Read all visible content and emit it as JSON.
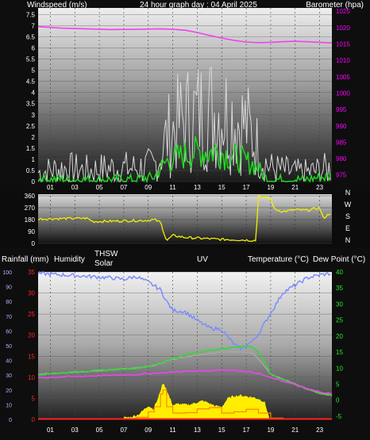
{
  "header": {
    "left": "Windspeed (m/s)",
    "center": "24 hour graph day : 04 April 2025",
    "right": "Barometer (hpa)"
  },
  "labels": {
    "rain": "Rainfall (mm)",
    "humidity": "Humidity",
    "thsw": "THSW",
    "solar": "Solar",
    "uv": "UV",
    "temp": "Temperature (°C)",
    "dew": "Dew Point (°C)"
  },
  "colors": {
    "wind_gust": "#d8d8d8",
    "wind_avg": "#22dd22",
    "barometer": "#ee44ee",
    "direction": "#f0f000",
    "humidity": "#7b8cff",
    "thsw": "#36d836",
    "temperature": "#a8a8a8",
    "dew_point": "#ee44ee",
    "solar": "#ffee00",
    "uv": "#ff8800",
    "rain": "#ff2222",
    "axis_left": "#ffffff",
    "axis_right": "#ff00ff",
    "axis_left_bottom": "#ff2222",
    "axis_right_bottom": "#22ee22"
  },
  "chart_data": [
    {
      "type": "line",
      "name": "wind-barometer",
      "xlim": [
        0,
        24
      ],
      "x_ticks": [
        "01",
        "03",
        "05",
        "07",
        "09",
        "11",
        "13",
        "15",
        "17",
        "19",
        "21",
        "23"
      ],
      "y_left_ticks": [
        "0",
        "0.5",
        "1",
        "1.5",
        "2",
        "2.5",
        "3",
        "3.5",
        "4",
        "4.5",
        "5",
        "5.5",
        "6",
        "6.5",
        "7",
        "7.5"
      ],
      "y_left_range": [
        0,
        7.8
      ],
      "y_right_ticks": [
        "975",
        "980",
        "985",
        "990",
        "995",
        "1000",
        "1005",
        "1010",
        "1015",
        "1020",
        "1025"
      ],
      "y_right_range": [
        973,
        1026
      ],
      "series": [
        {
          "key": "wind_gust",
          "x": [
            0,
            2,
            4,
            6,
            8,
            9.5,
            10,
            10.5,
            11,
            11.5,
            12,
            12.5,
            13,
            13.5,
            14,
            14.5,
            15,
            15.5,
            16,
            16.5,
            17,
            17.5,
            18,
            18.5,
            19,
            20,
            21,
            22,
            23,
            24
          ],
          "y": [
            0.4,
            0.6,
            0.5,
            0.6,
            0.6,
            0.7,
            1.2,
            2.0,
            2.3,
            2.6,
            2.8,
            2.9,
            3.0,
            3.1,
            3.2,
            3.1,
            3.2,
            3.0,
            2.9,
            2.7,
            2.5,
            2.0,
            1.5,
            0.9,
            0.6,
            0.5,
            0.4,
            0.4,
            0.5,
            0.6
          ]
        },
        {
          "key": "wind_avg",
          "x": [
            0,
            2,
            4,
            6,
            8,
            9.5,
            10,
            10.5,
            11,
            11.5,
            12,
            12.5,
            13,
            13.5,
            14,
            14.5,
            15,
            15.5,
            16,
            16.5,
            17,
            17.5,
            18,
            18.5,
            19,
            20,
            21,
            22,
            23,
            24
          ],
          "y": [
            0.1,
            0.1,
            0.1,
            0.1,
            0.1,
            0.2,
            0.6,
            0.9,
            1.0,
            1.1,
            1.2,
            1.3,
            1.3,
            1.4,
            1.3,
            1.4,
            1.3,
            1.2,
            1.1,
            1.0,
            0.9,
            0.8,
            0.6,
            0.2,
            0.1,
            0.1,
            0.1,
            0.1,
            0.2,
            0.2
          ]
        },
        {
          "key": "barometer",
          "x": [
            0,
            2,
            4,
            6,
            8,
            10,
            11,
            12,
            13,
            14,
            15,
            16,
            17,
            18,
            19,
            20,
            21,
            22,
            23,
            24
          ],
          "y": [
            1020.3,
            1019.8,
            1019.6,
            1019.4,
            1019.5,
            1019.6,
            1019.5,
            1019.2,
            1018.5,
            1017.6,
            1016.8,
            1016.1,
            1015.6,
            1015.4,
            1015.5,
            1015.7,
            1015.8,
            1015.7,
            1015.5,
            1015.3
          ]
        }
      ]
    },
    {
      "type": "line",
      "name": "wind-direction",
      "xlim": [
        0,
        24
      ],
      "y_left_ticks": [
        "0",
        "90",
        "180",
        "270",
        "360"
      ],
      "y_left_range": [
        0,
        360
      ],
      "y_right_ticks": [
        "N",
        "W",
        "S",
        "E",
        "N"
      ],
      "series": [
        {
          "key": "direction",
          "x": [
            0,
            4,
            4.5,
            9,
            9.5,
            10,
            10.5,
            11,
            12,
            13,
            14,
            15,
            16,
            17,
            17.8,
            18,
            18.5,
            19,
            19.3,
            20,
            21,
            22,
            23,
            23.3,
            24
          ],
          "y": [
            185,
            190,
            165,
            175,
            180,
            160,
            20,
            60,
            45,
            40,
            35,
            30,
            28,
            25,
            22,
            360,
            345,
            340,
            260,
            240,
            255,
            250,
            270,
            190,
            240
          ]
        }
      ]
    },
    {
      "type": "line",
      "name": "climate",
      "xlim": [
        0,
        24
      ],
      "x_ticks": [
        "01",
        "03",
        "05",
        "07",
        "09",
        "11",
        "13",
        "15",
        "17",
        "19",
        "21",
        "23"
      ],
      "y_left_ticks": [
        "0",
        "5",
        "10",
        "15",
        "20",
        "25",
        "30",
        "35"
      ],
      "y_left_range": [
        0,
        35
      ],
      "y_hum_ticks": [
        "0",
        "10",
        "20",
        "30",
        "40",
        "50",
        "60",
        "70",
        "80",
        "90",
        "100"
      ],
      "y_hum_range": [
        0,
        100
      ],
      "y_right_ticks": [
        "-5",
        "0",
        "5",
        "10",
        "15",
        "20",
        "25",
        "30",
        "35",
        "40"
      ],
      "y_right_range": [
        -6,
        40
      ],
      "series": [
        {
          "key": "humidity",
          "x": [
            0,
            2,
            4,
            6,
            7,
            8,
            9,
            10,
            10.5,
            11,
            12,
            13,
            14,
            15,
            16,
            16.5,
            17,
            17.5,
            18,
            19,
            20,
            21,
            22,
            23,
            24
          ],
          "y": [
            99,
            98,
            97,
            96,
            95,
            97,
            93,
            88,
            80,
            74,
            73,
            67,
            62,
            61,
            51,
            48,
            50,
            53,
            58,
            72,
            86,
            91,
            96,
            98,
            99
          ]
        },
        {
          "key": "thsw",
          "x": [
            0,
            2,
            4,
            6,
            8,
            9,
            10,
            11,
            12,
            13,
            14,
            15,
            16,
            17,
            17.5,
            18,
            18.5,
            19,
            20,
            21,
            22,
            23,
            24
          ],
          "y": [
            8,
            8.5,
            9,
            9.5,
            10,
            10.5,
            11.5,
            13,
            14,
            15,
            15.5,
            16,
            16.5,
            17,
            16.5,
            15,
            12,
            8,
            6.5,
            5,
            3.5,
            2.2,
            1.5
          ]
        },
        {
          "key": "temperature",
          "x": [
            0,
            2,
            4,
            6,
            8,
            9,
            10,
            11,
            12,
            13,
            14,
            15,
            16,
            17,
            17.5,
            18,
            18.5,
            19,
            20,
            21,
            22,
            23,
            24
          ],
          "y": [
            8,
            8.5,
            9,
            9.5,
            10,
            10.5,
            11.5,
            12.8,
            13.5,
            14,
            14.5,
            15,
            15,
            15,
            14.8,
            13,
            10.5,
            8,
            6.5,
            5,
            3.5,
            2.2,
            1.5
          ]
        },
        {
          "key": "dew_point",
          "x": [
            0,
            4,
            8,
            10,
            12,
            14,
            15,
            16,
            17,
            18,
            19,
            20,
            21,
            22,
            23,
            24
          ],
          "y": [
            7,
            7.5,
            8,
            8.5,
            9,
            9.2,
            9.5,
            9.3,
            9,
            8.3,
            7,
            6,
            4.8,
            3.5,
            2.6,
            2
          ]
        },
        {
          "key": "solar",
          "x": [
            7,
            7.6,
            8.2,
            8.6,
            9,
            9.4,
            9.8,
            10,
            10.2,
            10.4,
            10.6,
            11,
            11.5,
            12,
            12.5,
            13,
            13.5,
            14,
            14.5,
            15,
            15.5,
            16,
            16.5,
            17,
            17.5,
            18,
            18.5,
            18.9
          ],
          "y": [
            0.4,
            0.6,
            1.2,
            2.2,
            3.3,
            2.5,
            5.0,
            7.0,
            8.6,
            7.8,
            6.2,
            3.4,
            3.7,
            3.5,
            3.6,
            4.1,
            4.4,
            3.8,
            3.2,
            3.0,
            5.0,
            5.6,
            5.7,
            5.5,
            5.3,
            4.9,
            4.2,
            0.3
          ]
        },
        {
          "key": "uv",
          "x": [
            7,
            8,
            9,
            9.5,
            10,
            10.2,
            10.5,
            11,
            12,
            13,
            14,
            15,
            16,
            17,
            18,
            19,
            20
          ],
          "y": [
            0.1,
            0.5,
            1.8,
            3,
            6,
            7,
            3,
            1.5,
            1.6,
            2.5,
            2.8,
            1.5,
            1.8,
            2.4,
            1.5,
            0.3,
            0.1
          ]
        },
        {
          "key": "rain",
          "x": [
            0,
            24
          ],
          "y": [
            0.1,
            0.1
          ]
        }
      ]
    }
  ]
}
